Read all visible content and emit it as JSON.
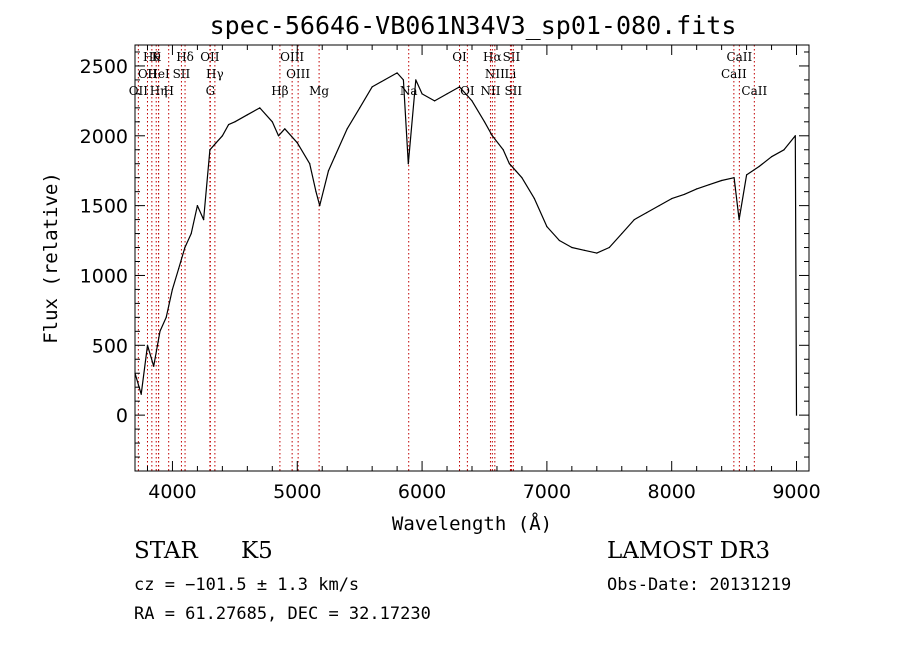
{
  "chart_data": {
    "type": "line",
    "title": "spec-56646-VB061N34V3_sp01-080.fits",
    "xlabel": "Wavelength (Å)",
    "ylabel": "Flux (relative)",
    "xlim": [
      3700,
      9100
    ],
    "ylim": [
      -400,
      2650
    ],
    "x_ticks": [
      4000,
      5000,
      6000,
      7000,
      8000,
      9000
    ],
    "y_ticks": [
      0,
      500,
      1000,
      1500,
      2000,
      2500
    ],
    "grid": false,
    "legend": "none",
    "series_color": "#000000",
    "line_marker_color": "#c00000",
    "series": [
      {
        "x": [
          3700,
          3750,
          3800,
          3850,
          3900,
          3950,
          4000,
          4050,
          4100,
          4150,
          4200,
          4250,
          4300,
          4350,
          4400,
          4450,
          4500,
          4600,
          4700,
          4800,
          4850,
          4900,
          5000,
          5100,
          5150,
          5180,
          5250,
          5300,
          5400,
          5500,
          5600,
          5700,
          5800,
          5850,
          5890,
          5950,
          6000,
          6100,
          6200,
          6300,
          6400,
          6500,
          6563,
          6650,
          6700,
          6750,
          6800,
          6900,
          7000,
          7100,
          7200,
          7300,
          7400,
          7500,
          7600,
          7700,
          7800,
          7900,
          8000,
          8100,
          8200,
          8300,
          8400,
          8500,
          8540,
          8600,
          8700,
          8800,
          8900,
          8990,
          9000
        ],
        "y": [
          300,
          150,
          500,
          350,
          600,
          700,
          900,
          1050,
          1200,
          1300,
          1500,
          1400,
          1900,
          1950,
          2000,
          2080,
          2100,
          2150,
          2200,
          2100,
          2000,
          2050,
          1950,
          1800,
          1600,
          1500,
          1750,
          1850,
          2050,
          2200,
          2350,
          2400,
          2450,
          2400,
          1800,
          2400,
          2300,
          2250,
          2300,
          2350,
          2250,
          2100,
          2000,
          1900,
          1800,
          1750,
          1700,
          1550,
          1350,
          1250,
          1200,
          1180,
          1160,
          1200,
          1300,
          1400,
          1450,
          1500,
          1550,
          1580,
          1620,
          1650,
          1680,
          1700,
          1400,
          1720,
          1780,
          1850,
          1900,
          2000,
          0
        ]
      }
    ],
    "line_labels": [
      {
        "wavelength": 3835,
        "label": "Hθ",
        "row": 0
      },
      {
        "wavelength": 3870,
        "label": "K",
        "row": 0
      },
      {
        "wavelength": 4101,
        "label": "Hδ",
        "row": 0
      },
      {
        "wavelength": 4300,
        "label": "OII",
        "row": 0
      },
      {
        "wavelength": 4959,
        "label": "OIII",
        "row": 0
      },
      {
        "wavelength": 6300,
        "label": "OI",
        "row": 0
      },
      {
        "wavelength": 6563,
        "label": "Hα",
        "row": 0
      },
      {
        "wavelength": 6716,
        "label": "SII",
        "row": 0
      },
      {
        "wavelength": 8542,
        "label": "CaII",
        "row": 0
      },
      {
        "wavelength": 3800,
        "label": "OII",
        "row": 1
      },
      {
        "wavelength": 3889,
        "label": "HeI",
        "row": 1
      },
      {
        "wavelength": 4072,
        "label": "SII",
        "row": 1
      },
      {
        "wavelength": 4340,
        "label": "Hγ",
        "row": 1
      },
      {
        "wavelength": 5007,
        "label": "OIII",
        "row": 1
      },
      {
        "wavelength": 6583,
        "label": "NII",
        "row": 1
      },
      {
        "wavelength": 6708,
        "label": "Li",
        "row": 1
      },
      {
        "wavelength": 8498,
        "label": "CaII",
        "row": 1
      },
      {
        "wavelength": 3727,
        "label": "OII",
        "row": 2
      },
      {
        "wavelength": 3889,
        "label": "Hη",
        "row": 2
      },
      {
        "wavelength": 3970,
        "label": "H",
        "row": 2
      },
      {
        "wavelength": 4304,
        "label": "G",
        "row": 2
      },
      {
        "wavelength": 4861,
        "label": "Hβ",
        "row": 2
      },
      {
        "wavelength": 5175,
        "label": "Mg",
        "row": 2
      },
      {
        "wavelength": 5893,
        "label": "Na",
        "row": 2
      },
      {
        "wavelength": 6363,
        "label": "OI",
        "row": 2
      },
      {
        "wavelength": 6548,
        "label": "NII",
        "row": 2
      },
      {
        "wavelength": 6731,
        "label": "SII",
        "row": 2
      },
      {
        "wavelength": 8662,
        "label": "CaII",
        "row": 2
      }
    ]
  },
  "info": {
    "class": "STAR",
    "subclass": "K5",
    "survey": "LAMOST DR3",
    "cz": "cz = −101.5 ± 1.3 km/s",
    "obs_date": "Obs-Date: 20131219",
    "radec": "RA =  61.27685, DEC =  32.17230"
  }
}
